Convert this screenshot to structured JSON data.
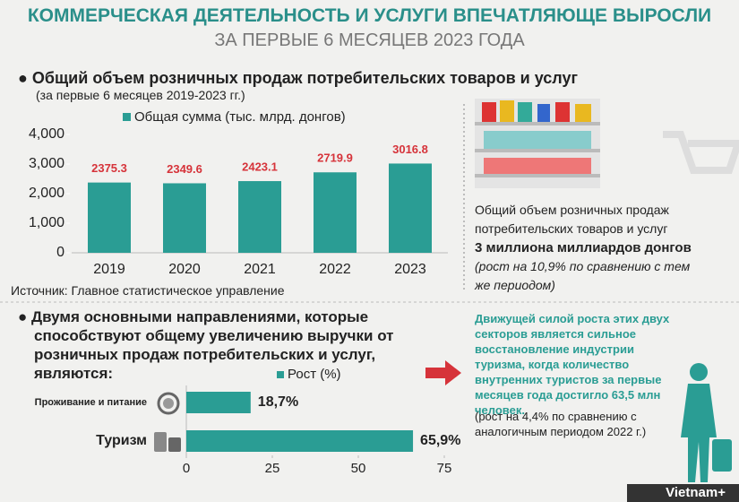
{
  "header": {
    "title": "КОММЕРЧЕСКАЯ ДЕЯТЕЛЬНОСТЬ И УСЛУГИ ВПЕЧАТЛЯЮЩЕ ВЫРОСЛИ",
    "subtitle": "ЗА ПЕРВЫЕ 6 МЕСЯЦЕВ 2023 ГОДА"
  },
  "chart_data": [
    {
      "type": "bar",
      "title": "Общий объем розничных продаж потребительских товаров и услуг",
      "subtitle": "(за первые 6 месяцев 2019-2023 гг.)",
      "categories": [
        "2019",
        "2020",
        "2021",
        "2022",
        "2023"
      ],
      "series": [
        {
          "name": "Общая сумма (тыс. млрд. донгов)",
          "color": "#2a9d94",
          "values": [
            2375.3,
            2349.6,
            2423.1,
            2719.9,
            3016.8
          ]
        }
      ],
      "ylim": [
        0,
        4000
      ],
      "yticks": [
        0,
        {
          "value": 1000,
          "label": "1,000"
        },
        {
          "value": 2000,
          "label": "2,000"
        },
        {
          "value": 3000,
          "label": "3,000"
        },
        {
          "value": 4000,
          "label": "4,000"
        }
      ],
      "source": "Источник: Главное статистическое управление"
    },
    {
      "type": "barh",
      "title": "Двумя основными направлениями, которые способствуют общему увеличению выручки от розничных продаж потребительских и услуг, являются:",
      "categories": [
        "Проживание и питание",
        "Туризм"
      ],
      "series": [
        {
          "name": "Рост (%)",
          "color": "#2a9d94",
          "values": [
            18.7,
            65.9
          ],
          "value_labels": [
            "18,7%",
            "65,9%"
          ]
        }
      ],
      "xlim": [
        0,
        75
      ],
      "xticks": [
        0,
        25,
        50,
        75
      ]
    }
  ],
  "info": {
    "text": "Общий объем розничных продаж потребительских товаров и услуг",
    "highlight": "3 миллиона миллиардов донгов",
    "note": "(рост на 10,9% по сравнению с тем же периодом)"
  },
  "side": {
    "text": "Движущей силой роста этих двух секторов является сильное восстановление индустрии туризма, когда количество внутренних туристов за первые месяцев года достигло 63,5 млн человек.",
    "note": "(рост на 4,4% по сравнению с аналогичным периодом 2022 г.)"
  },
  "footer": {
    "brand": "Vietnam+"
  }
}
